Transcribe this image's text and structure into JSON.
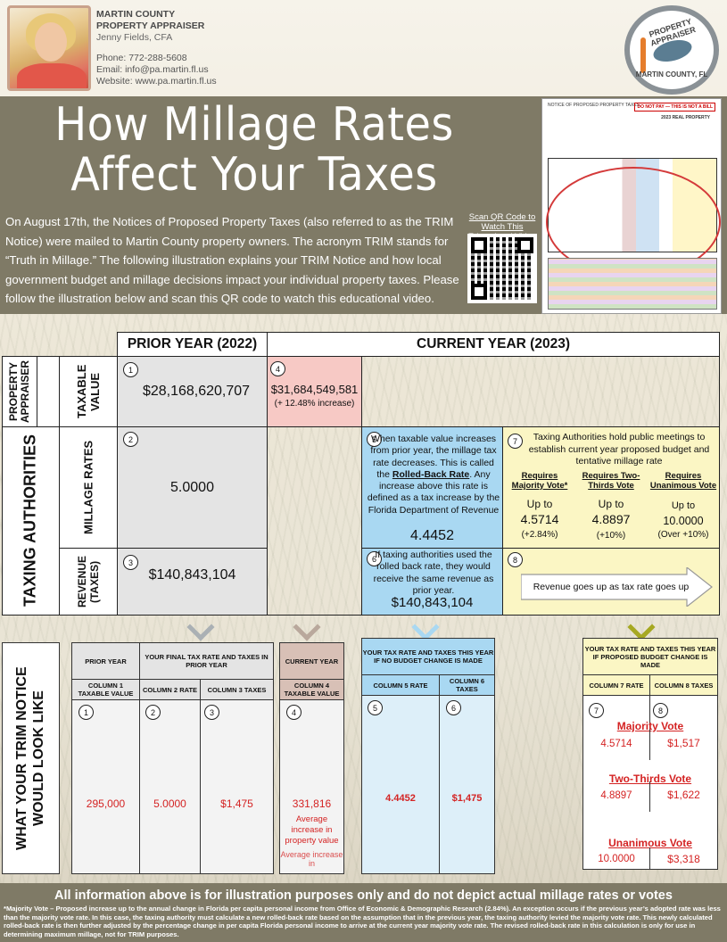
{
  "header": {
    "org_line1": "MARTIN COUNTY",
    "org_line2": "PROPERTY APPRAISER",
    "name": "Jenny Fields, CFA",
    "phone": "Phone: 772-288-5608",
    "email": "Email: info@pa.martin.fl.us",
    "website": "Website: www.pa.martin.fl.us",
    "seal_top": "PROPERTY APPRAISER",
    "seal_bottom": "MARTIN COUNTY, FL"
  },
  "title": {
    "line1": "How Millage Rates",
    "line2": "Affect Your Taxes"
  },
  "intro": "On August 17th, the Notices of Proposed Property Taxes (also referred to as the TRIM Notice) were mailed to Martin County property owners.  The acronym TRIM stands for “Truth in Millage.”  The following illustration explains your TRIM Notice and how local government budget and millage decisions impact your individual property taxes.  Please follow the illustration below and scan this QR code to watch this educational video.",
  "qr_label": "Scan QR Code to Watch This Educational Video",
  "notice_image": {
    "heading": "NOTICE OF PROPOSED PROPERTY TAXES",
    "do_not_pay": "DO NOT PAY — THIS IS NOT A BILL",
    "year": "2023 REAL PROPERTY"
  },
  "table": {
    "prior_year": "PRIOR YEAR (2022)",
    "current_year": "CURRENT YEAR (2023)",
    "side_pa": "PROPERTY APPRAISER",
    "side_ta": "TAXING AUTHORITIES",
    "row_taxable": "TAXABLE VALUE",
    "row_millage": "MILLAGE RATES",
    "row_revenue": "REVENUE (TAXES)",
    "n1": "1",
    "n2": "2",
    "n3": "3",
    "n4": "4",
    "n5": "5",
    "n6": "6",
    "n7": "7",
    "n8": "8",
    "prior_taxable": "$28,168,620,707",
    "current_taxable": "$31,684,549,581",
    "current_taxable_change": "(+ 12.48% increase)",
    "prior_millage": "5.0000",
    "prior_revenue": "$140,843,104",
    "box5_text_a": "When taxable value increases from prior year, the millage tax rate decreases. This is called the ",
    "box5_link": "Rolled-Back Rate",
    "box5_text_b": ". Any increase above this rate is defined as a tax increase by the Florida Department of Revenue",
    "box5_rate": "4.4452",
    "box6_text": "If taxing authorities used the rolled back rate, they would receive the same revenue as prior year.",
    "box6_value": "$140,843,104",
    "box7_text": "Taxing Authorities hold public meetings to establish current year proposed budget and tentative millage rate",
    "req_majority": "Requires Majority Vote*",
    "req_twothirds": "Requires Two-Thirds Vote",
    "req_unanimous": "Requires Unanimous Vote",
    "upto": "Up to",
    "majority_rate": "4.5714",
    "majority_change": "(+2.84%)",
    "twothirds_rate": "4.8897",
    "twothirds_change": "(+10%)",
    "unanimous_rate": "10.0000",
    "unanimous_change": "(Over +10%)",
    "box8_text": "Revenue goes up as tax rate goes up"
  },
  "trim": {
    "side_label": "WHAT YOUR TRIM NOTICE WOULD LOOK LIKE",
    "prior_year": "PRIOR YEAR",
    "final_rate_header": "YOUR FINAL TAX RATE AND TAXES IN PRIOR YEAR",
    "col1": "COLUMN 1 TAXABLE VALUE",
    "col2": "COLUMN 2 RATE",
    "col3": "COLUMN 3 TAXES",
    "current_year": "CURRENT YEAR",
    "col4": "COLUMN 4 TAXABLE VALUE",
    "no_budget_header": "YOUR TAX RATE AND TAXES THIS YEAR IF NO BUDGET CHANGE IS MADE",
    "col5": "COLUMN 5 RATE",
    "col6": "COLUMN 6 TAXES",
    "proposed_header": "YOUR TAX RATE AND TAXES THIS YEAR IF PROPOSED BUDGET CHANGE IS MADE",
    "col7": "COLUMN 7 RATE",
    "col8": "COLUMN 8 TAXES",
    "v1": "295,000",
    "v2": "5.0000",
    "v3": "$1,475",
    "v4": "331,816",
    "v4_note": "Average increase in property value",
    "v4_note_cut": "Average increase in",
    "v5": "4.4452",
    "v6": "$1,475",
    "majority_vote": "Majority Vote",
    "m_rate": "4.5714",
    "m_tax": "$1,517",
    "twothirds_vote": "Two-Thirds Vote",
    "t_rate": "4.8897",
    "t_tax": "$1,622",
    "unanimous_vote": "Unanimous Vote",
    "u_rate": "10.0000",
    "u_tax": "$3,318"
  },
  "footer": {
    "line1": "All information above is for illustration purposes only and do not depict actual millage rates or votes",
    "line2": "*Majority Vote – Proposed increase up to the annual change in Florida per capita personal income from Office of Economic & Demographic Research (2.84%). An exception occurs if the previous year’s adopted rate was less than the majority vote rate. In this case, the taxing authority must calculate a new rolled-back rate based on the assumption that in the previous year, the taxing authority levied the majority vote rate. This newly calculated rolled-back rate is then further adjusted by the percentage change in per capita Florida personal income to arrive at the current year majority vote rate. The revised rolled-back rate in this calculation is only for use in determining maximum millage, not for TRIM purposes."
  },
  "colors": {
    "band": "#7f7a66",
    "grey": "#e4e4e4",
    "pink": "#f7c9c5",
    "blue": "#a9d8f2",
    "yellow": "#fbf6c4",
    "red": "#d42323"
  }
}
